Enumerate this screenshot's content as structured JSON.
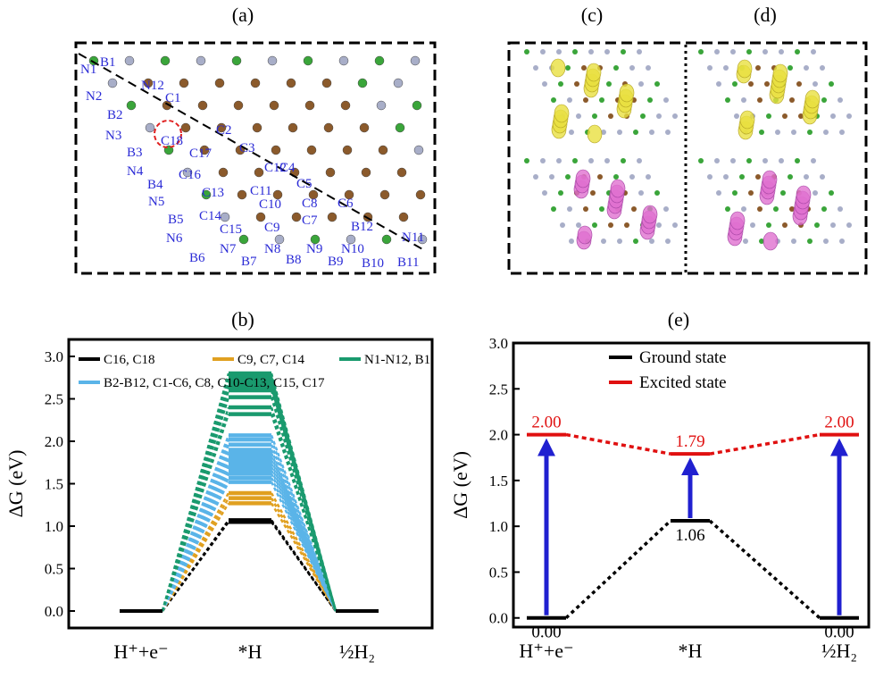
{
  "panels": {
    "a": {
      "label": "(a)",
      "atom_labels": [
        "N1",
        "B1",
        "N12",
        "N2",
        "C1",
        "B2",
        "N3",
        "C2",
        "C18",
        "B3",
        "C17",
        "C3",
        "N4",
        "C12",
        "C4",
        "C16",
        "B4",
        "C13",
        "C11",
        "C5",
        "N5",
        "C10",
        "C8",
        "C6",
        "B5",
        "C14",
        "C9",
        "C7",
        "B12",
        "C15",
        "N6",
        "N7",
        "N8",
        "N9",
        "N10",
        "N11",
        "B6",
        "B7",
        "B8",
        "B9",
        "B10",
        "B11"
      ],
      "colors": {
        "carbon": "#8b5a2b",
        "boron": "#3aa53a",
        "nitrogen": "#a8aec8",
        "label": "#2b2bd6",
        "highlight": "#e02020"
      }
    },
    "c": {
      "label": "(c)"
    },
    "d": {
      "label": "(d)"
    },
    "b": {
      "label": "(b)",
      "colors": {
        "c16_c18": "#000000",
        "c9_c7_c14": "#e0a020",
        "n_b1": "#1a9a6e",
        "b_c": "#5ab4e8"
      }
    },
    "e": {
      "label": "(e)",
      "colors": {
        "ground": "#000000",
        "excited": "#e01010",
        "arrow": "#2020d0"
      }
    }
  },
  "chart_data": [
    {
      "panel": "b",
      "type": "line",
      "ylabel": "ΔG (eV)",
      "ylim": [
        -0.2,
        3.2
      ],
      "yticks": [
        "0.0",
        "0.5",
        "1.0",
        "1.5",
        "2.0",
        "2.5",
        "3.0"
      ],
      "ytick_values": [
        0,
        0.5,
        1.0,
        1.5,
        2.0,
        2.5,
        3.0
      ],
      "categories": [
        "H⁺+e⁻",
        "*H",
        "½H₂"
      ],
      "legend": [
        {
          "name": "C16, C18",
          "color": "#000000"
        },
        {
          "name": "C9, C7, C14",
          "color": "#e0a020"
        },
        {
          "name": "N1-N12, B1",
          "color": "#1a9a6e"
        },
        {
          "name": "B2-B12, C1-C6, C8, C10-C13, C15, C17",
          "color": "#5ab4e8"
        }
      ],
      "series": [
        {
          "group": 0,
          "values": [
            0,
            1.05,
            0
          ]
        },
        {
          "group": 0,
          "values": [
            0,
            1.07,
            0
          ]
        },
        {
          "group": 1,
          "values": [
            0,
            1.27,
            0
          ]
        },
        {
          "group": 1,
          "values": [
            0,
            1.33,
            0
          ]
        },
        {
          "group": 1,
          "values": [
            0,
            1.39,
            0
          ]
        },
        {
          "group": 3,
          "values": [
            0,
            1.52,
            0
          ]
        },
        {
          "group": 3,
          "values": [
            0,
            1.57,
            0
          ]
        },
        {
          "group": 3,
          "values": [
            0,
            1.62,
            0
          ]
        },
        {
          "group": 3,
          "values": [
            0,
            1.66,
            0
          ]
        },
        {
          "group": 3,
          "values": [
            0,
            1.7,
            0
          ]
        },
        {
          "group": 3,
          "values": [
            0,
            1.74,
            0
          ]
        },
        {
          "group": 3,
          "values": [
            0,
            1.78,
            0
          ]
        },
        {
          "group": 3,
          "values": [
            0,
            1.82,
            0
          ]
        },
        {
          "group": 3,
          "values": [
            0,
            1.86,
            0
          ]
        },
        {
          "group": 3,
          "values": [
            0,
            1.9,
            0
          ]
        },
        {
          "group": 3,
          "values": [
            0,
            1.96,
            0
          ]
        },
        {
          "group": 3,
          "values": [
            0,
            2.02,
            0
          ]
        },
        {
          "group": 3,
          "values": [
            0,
            2.07,
            0
          ]
        },
        {
          "group": 2,
          "values": [
            0,
            2.32,
            0
          ]
        },
        {
          "group": 2,
          "values": [
            0,
            2.4,
            0
          ]
        },
        {
          "group": 2,
          "values": [
            0,
            2.52,
            0
          ]
        },
        {
          "group": 2,
          "values": [
            0,
            2.6,
            0
          ]
        },
        {
          "group": 2,
          "values": [
            0,
            2.64,
            0
          ]
        },
        {
          "group": 2,
          "values": [
            0,
            2.68,
            0
          ]
        },
        {
          "group": 2,
          "values": [
            0,
            2.72,
            0
          ]
        },
        {
          "group": 2,
          "values": [
            0,
            2.76,
            0
          ]
        },
        {
          "group": 2,
          "values": [
            0,
            2.8,
            0
          ]
        }
      ]
    },
    {
      "panel": "e",
      "type": "line",
      "ylabel": "ΔG (eV)",
      "ylim": [
        -0.1,
        3.0
      ],
      "yticks": [
        "0.0",
        "0.5",
        "1.0",
        "1.5",
        "2.0",
        "2.5",
        "3.0"
      ],
      "ytick_values": [
        0,
        0.5,
        1.0,
        1.5,
        2.0,
        2.5,
        3.0
      ],
      "categories": [
        "H⁺+e⁻",
        "*H",
        "½H₂"
      ],
      "legend": [
        {
          "name": "Ground state",
          "color": "#000000"
        },
        {
          "name": "Excited state",
          "color": "#e01010"
        }
      ],
      "series": [
        {
          "name": "Ground state",
          "values": [
            0.0,
            1.06,
            0.0
          ],
          "labels": [
            "0.00",
            "1.06",
            "0.00"
          ]
        },
        {
          "name": "Excited state",
          "values": [
            2.0,
            1.79,
            2.0
          ],
          "labels": [
            "2.00",
            "1.79",
            "2.00"
          ]
        }
      ]
    }
  ]
}
